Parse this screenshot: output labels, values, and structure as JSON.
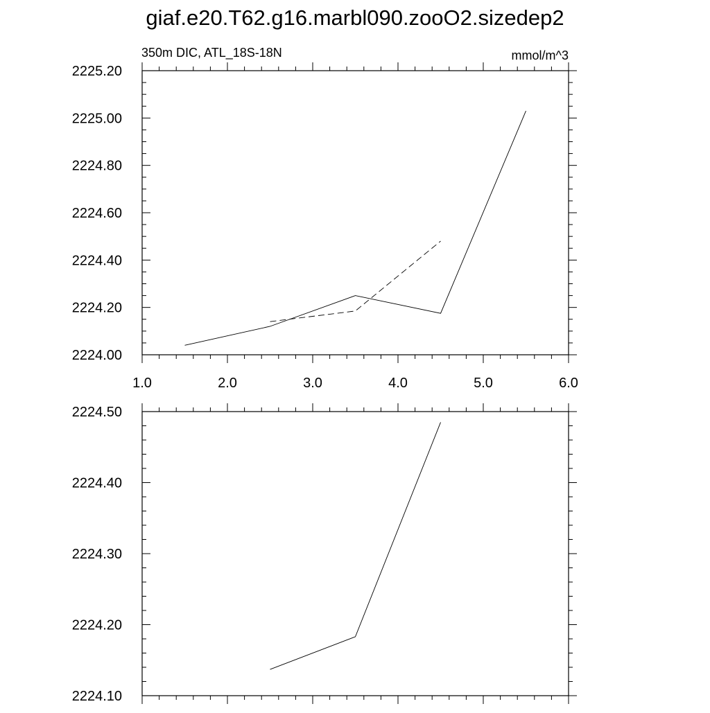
{
  "figure": {
    "title": "giaf.e20.T62.g16.marbl090.zooO2.sizedep2",
    "subtitle_left": "350m DIC, ATL_18S-18N",
    "subtitle_right": "mmol/m^3"
  },
  "chart_data": [
    {
      "type": "line",
      "title": "350m DIC, ATL_18S-18N",
      "units": "mmol/m^3",
      "xlim": [
        1.0,
        6.0
      ],
      "ylim": [
        2224.0,
        2225.2
      ],
      "x_ticks": [
        "1.0",
        "2.0",
        "3.0",
        "4.0",
        "5.0",
        "6.0"
      ],
      "y_ticks": [
        "2224.00",
        "2224.20",
        "2224.40",
        "2224.60",
        "2224.80",
        "2225.00",
        "2225.20"
      ],
      "grid": false,
      "series": [
        {
          "style": "solid",
          "x": [
            1.5,
            2.5,
            3.5,
            4.5,
            5.5
          ],
          "y": [
            2224.04,
            2224.12,
            2224.25,
            2224.175,
            2225.03
          ]
        },
        {
          "style": "dashed",
          "x": [
            2.5,
            3.5,
            4.5
          ],
          "y": [
            2224.14,
            2224.185,
            2224.48
          ]
        }
      ]
    },
    {
      "type": "line",
      "xlim": [
        1.0,
        6.0
      ],
      "ylim": [
        2224.1,
        2224.5
      ],
      "x_ticks": [],
      "y_ticks": [
        "2224.10",
        "2224.20",
        "2224.30",
        "2224.40",
        "2224.50"
      ],
      "grid": false,
      "series": [
        {
          "style": "solid",
          "x": [
            2.5,
            3.5,
            4.5
          ],
          "y": [
            2224.137,
            2224.183,
            2224.485
          ]
        }
      ]
    }
  ]
}
